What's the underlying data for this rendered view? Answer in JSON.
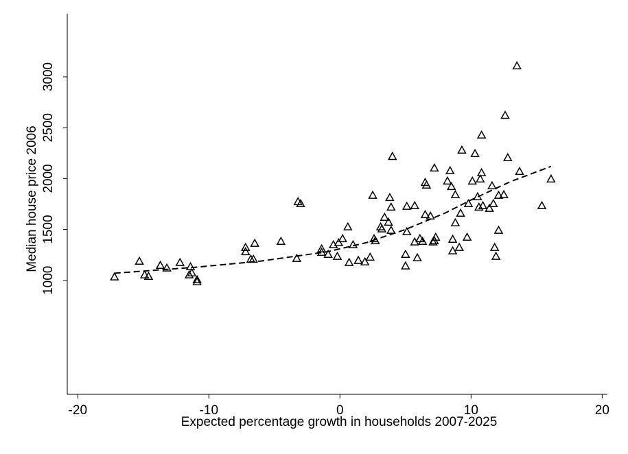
{
  "chart_data": {
    "type": "scatter",
    "xlabel": "Expected percentage growth in households 2007-2025",
    "ylabel": "Median house price 2006",
    "xlim": [
      -20.8,
      20.4
    ],
    "xticks": [
      -20,
      -10,
      0,
      10,
      20
    ],
    "ylim": [
      -120,
      3620
    ],
    "yticks": [
      1000,
      1500,
      2000,
      2500,
      3000
    ],
    "marker": "triangle",
    "color": "#000000",
    "series": [
      {
        "type": "scatter",
        "x": [
          -17.2,
          -15.3,
          -14.9,
          -14.6,
          -13.7,
          -13.2,
          -12.2,
          -11.4,
          -11.5,
          -11.3,
          -10.9,
          -10.9,
          -7.2,
          -7.2,
          -6.8,
          -6.6,
          -6.5,
          -4.5,
          -3.3,
          -3.2,
          -3.0,
          -1.4,
          -1.4,
          -0.9,
          -0.5,
          -0.2,
          -0.1,
          0.2,
          0.6,
          0.7,
          1.0,
          1.4,
          1.9,
          2.3,
          2.5,
          2.6,
          2.7,
          3.1,
          3.2,
          3.4,
          3.7,
          3.8,
          3.9,
          3.9,
          4.0,
          5.0,
          5.0,
          5.1,
          5.1,
          5.7,
          5.7,
          5.9,
          6.1,
          6.3,
          6.5,
          6.6,
          6.5,
          6.9,
          7.1,
          7.2,
          7.2,
          7.3,
          8.2,
          8.4,
          8.5,
          8.6,
          8.6,
          8.8,
          8.8,
          9.1,
          9.3,
          9.2,
          9.7,
          9.8,
          10.1,
          10.3,
          10.5,
          10.6,
          10.7,
          10.8,
          10.8,
          10.9,
          11.4,
          11.6,
          11.7,
          11.8,
          11.9,
          12.1,
          12.1,
          12.5,
          12.6,
          12.8,
          13.5,
          13.7,
          15.4,
          16.1
        ],
        "values": [
          1034,
          1188,
          1054,
          1040,
          1148,
          1122,
          1176,
          1134,
          1054,
          1074,
          1006,
          986,
          1324,
          1282,
          1208,
          1208,
          1364,
          1384,
          1216,
          1774,
          1754,
          1310,
          1276,
          1256,
          1350,
          1236,
          1370,
          1410,
          1526,
          1176,
          1350,
          1196,
          1182,
          1228,
          1836,
          1410,
          1390,
          1526,
          1506,
          1620,
          1572,
          1814,
          1720,
          1492,
          2218,
          1256,
          1142,
          1728,
          1478,
          1734,
          1378,
          1222,
          1410,
          1384,
          1962,
          1936,
          1646,
          1632,
          1378,
          2104,
          1390,
          1424,
          1976,
          2078,
          1922,
          1404,
          1290,
          1842,
          1566,
          1324,
          2280,
          1660,
          1424,
          1754,
          1976,
          2246,
          1822,
          1720,
          1996,
          2058,
          2428,
          1734,
          1708,
          1930,
          1754,
          1324,
          1236,
          1492,
          1836,
          1842,
          2622,
          2206,
          3108,
          2070,
          1734,
          1996
        ]
      },
      {
        "type": "line",
        "dash": true,
        "x": [
          -17.2,
          -10.9,
          -6,
          -1,
          2,
          5,
          8,
          10,
          13,
          16.1
        ],
        "values": [
          1070,
          1130,
          1190,
          1280,
          1370,
          1500,
          1660,
          1790,
          1970,
          2120
        ]
      }
    ]
  }
}
